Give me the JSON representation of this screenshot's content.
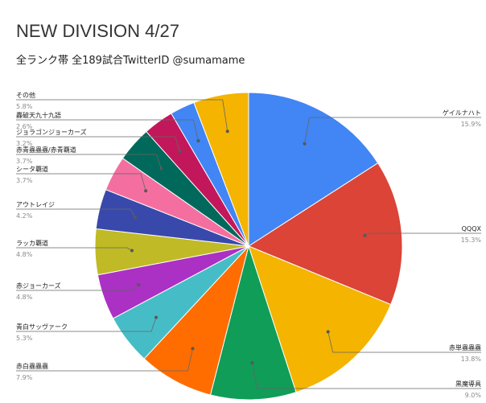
{
  "title": "NEW DIVISION 4/27",
  "subtitle": "全ランク帯 全189試合TwitterID @sumamame",
  "chart_data": {
    "type": "pie",
    "title": "NEW DIVISION 4/27",
    "subtitle": "全ランク帯 全189試合TwitterID @sumamame",
    "slices": [
      {
        "label": "ゲイルナハト",
        "value": 15.9,
        "value_text": "15.9%",
        "color": "#4285f4"
      },
      {
        "label": "QQQX",
        "value": 15.3,
        "value_text": "15.3%",
        "color": "#db4437"
      },
      {
        "label": "赤単蟲蟲蟲",
        "value": 13.8,
        "value_text": "13.8%",
        "color": "#f4b400"
      },
      {
        "label": "黒魔導具",
        "value": 9.0,
        "value_text": "9.0%",
        "color": "#0f9d58"
      },
      {
        "label": "赤白蟲蟲蟲",
        "value": 7.9,
        "value_text": "7.9%",
        "color": "#ff6d00"
      },
      {
        "label": "青白サッヴァーク",
        "value": 5.3,
        "value_text": "5.3%",
        "color": "#46bdc6"
      },
      {
        "label": "赤ジョーカーズ",
        "value": 4.8,
        "value_text": "4.8%",
        "color": "#ab30c4"
      },
      {
        "label": "ラッカ覇道",
        "value": 4.8,
        "value_text": "4.8%",
        "color": "#c0ba26"
      },
      {
        "label": "アウトレイジ",
        "value": 4.2,
        "value_text": "4.2%",
        "color": "#3949ab"
      },
      {
        "label": "シータ覇道",
        "value": 3.7,
        "value_text": "3.7%",
        "color": "#f46fa0"
      },
      {
        "label": "赤青蟲蟲蟲/赤青覇道",
        "value": 3.7,
        "value_text": "3.7%",
        "color": "#00695c"
      },
      {
        "label": "ジョラゴンジョーカーズ",
        "value": 3.2,
        "value_text": "3.2%",
        "color": "#c2185b"
      },
      {
        "label": "轟破天九十九語",
        "value": 2.6,
        "value_text": "2.6%",
        "color": "#4285f4"
      },
      {
        "label": "その他",
        "value": 5.8,
        "value_text": "5.8%",
        "color": "#f4b400"
      }
    ],
    "start_angle": "12 o'clock",
    "direction": "clockwise",
    "legend": "none"
  }
}
